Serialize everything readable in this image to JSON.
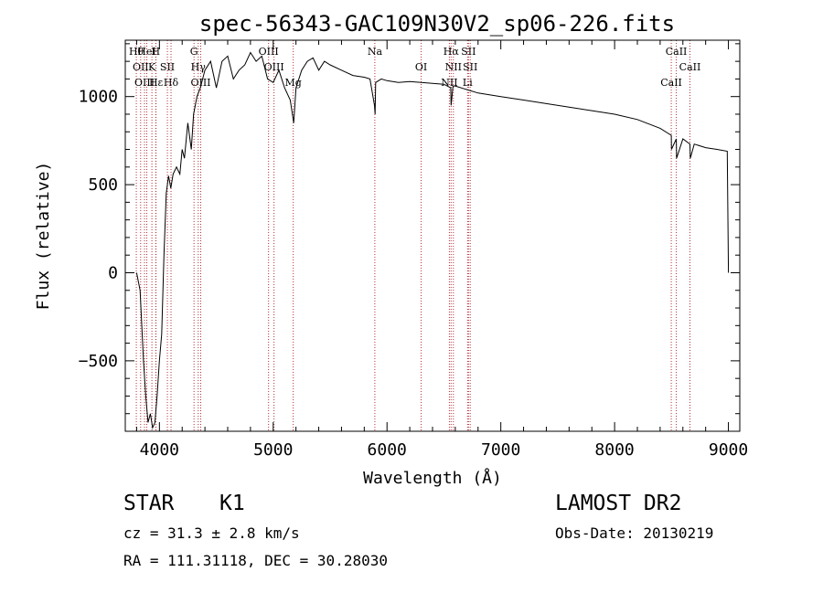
{
  "chart_data": {
    "type": "line",
    "title": "spec-56343-GAC109N30V2_sp06-226.fits",
    "xlabel": "Wavelength (Å)",
    "ylabel": "Flux (relative)",
    "xlim": [
      3700,
      9100
    ],
    "ylim": [
      -900,
      1320
    ],
    "xticks": [
      4000,
      5000,
      6000,
      7000,
      8000,
      9000
    ],
    "yticks": [
      -500,
      0,
      500,
      1000
    ],
    "xtick_labels": [
      "4000",
      "5000",
      "6000",
      "7000",
      "8000",
      "9000"
    ],
    "ytick_labels": [
      "−500",
      "0",
      "500",
      "1000"
    ],
    "grid": false,
    "legend": "none",
    "series": [
      {
        "x": [
          3800,
          3830,
          3860,
          3880,
          3900,
          3920,
          3940,
          3960,
          3980,
          4000,
          4020,
          4040,
          4060,
          4080,
          4100,
          4120,
          4150,
          4180,
          4200,
          4220,
          4250,
          4280,
          4300,
          4330,
          4360,
          4400,
          4450,
          4500,
          4550,
          4600,
          4650,
          4700,
          4750,
          4800,
          4850,
          4900,
          4950,
          5000,
          5050,
          5100,
          5150,
          5180,
          5200,
          5250,
          5300,
          5350,
          5400,
          5450,
          5500,
          5600,
          5700,
          5800,
          5850,
          5890,
          5895,
          5900,
          5950,
          6000,
          6100,
          6200,
          6300,
          6400,
          6500,
          6560,
          6563,
          6580,
          6600,
          6700,
          6800,
          6900,
          7000,
          7200,
          7400,
          7600,
          7800,
          8000,
          8200,
          8400,
          8498,
          8500,
          8542,
          8545,
          8600,
          8662,
          8665,
          8700,
          8800,
          8900,
          8990,
          9000
        ],
        "y": [
          0,
          -100,
          -500,
          -700,
          -850,
          -800,
          -880,
          -850,
          -700,
          -500,
          -350,
          100,
          450,
          550,
          480,
          560,
          600,
          560,
          700,
          650,
          850,
          700,
          900,
          1000,
          1050,
          1150,
          1200,
          1050,
          1200,
          1230,
          1100,
          1150,
          1180,
          1250,
          1200,
          1230,
          1100,
          1080,
          1150,
          1050,
          980,
          850,
          1050,
          1150,
          1200,
          1220,
          1150,
          1200,
          1180,
          1150,
          1120,
          1110,
          1100,
          950,
          900,
          1080,
          1100,
          1090,
          1080,
          1085,
          1080,
          1075,
          1070,
          1050,
          950,
          1060,
          1060,
          1040,
          1020,
          1010,
          1000,
          980,
          960,
          940,
          920,
          900,
          870,
          820,
          780,
          700,
          760,
          650,
          760,
          730,
          650,
          730,
          710,
          700,
          690,
          0
        ]
      }
    ],
    "lines": [
      {
        "x": 3797,
        "label": "Hθ"
      },
      {
        "x": 3835,
        "label": "OII"
      },
      {
        "x": 3869,
        "label": "OIII"
      },
      {
        "x": 3889,
        "label": "HeI"
      },
      {
        "x": 3934,
        "label": "K"
      },
      {
        "x": 3970,
        "label": "Hε"
      },
      {
        "x": 3968,
        "label": "H"
      },
      {
        "x": 4070,
        "label": "SII"
      },
      {
        "x": 4102,
        "label": "Hδ"
      },
      {
        "x": 4304,
        "label": "G"
      },
      {
        "x": 4341,
        "label": "Hγ"
      },
      {
        "x": 4363,
        "label": "OIII"
      },
      {
        "x": 4959,
        "label": "OIII"
      },
      {
        "x": 5007,
        "label": "OIII"
      },
      {
        "x": 5176,
        "label": "Mg"
      },
      {
        "x": 5893,
        "label": "Na"
      },
      {
        "x": 6300,
        "label": "OI"
      },
      {
        "x": 6548,
        "label": "NII"
      },
      {
        "x": 6563,
        "label": "Hα"
      },
      {
        "x": 6583,
        "label": "NII"
      },
      {
        "x": 6708,
        "label": "Li"
      },
      {
        "x": 6716,
        "label": "SII"
      },
      {
        "x": 6731,
        "label": "SII"
      },
      {
        "x": 8498,
        "label": "CaII"
      },
      {
        "x": 8542,
        "label": "CaII"
      },
      {
        "x": 8662,
        "label": "CaII"
      }
    ]
  },
  "info": {
    "object_class": "STAR",
    "subclass": "K1",
    "cz": "cz = 31.3 ± 2.8 km/s",
    "coords": "RA = 111.31118, DEC =  30.28030",
    "survey": "LAMOST DR2",
    "obs_date": "Obs-Date: 20130219"
  }
}
